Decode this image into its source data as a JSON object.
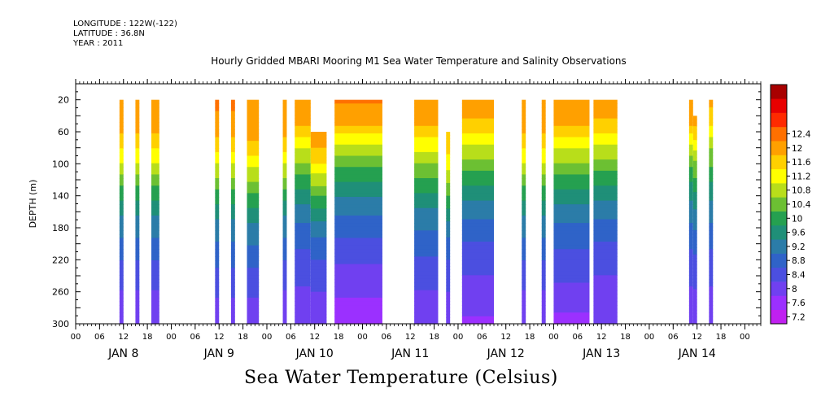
{
  "header": {
    "longitude": "LONGITUDE : 122W(-122)",
    "latitude": "LATITUDE : 36.8N",
    "year": "YEAR : 2011"
  },
  "chart_data": {
    "type": "heatmap",
    "title": "Hourly Gridded MBARI Mooring M1 Sea Water Temperature and Salinity Observations",
    "xlabel": "",
    "ylabel": "DEPTH (m)",
    "colorbar_title": "Sea Water Temperature (Celsius)",
    "x_hour_ticks": [
      "00",
      "06",
      "12",
      "18",
      "00",
      "06",
      "12",
      "18",
      "00",
      "06",
      "12",
      "18",
      "00",
      "06",
      "12",
      "18",
      "00",
      "06",
      "12",
      "18",
      "00",
      "06",
      "12",
      "18",
      "00",
      "06",
      "12",
      "18",
      "00"
    ],
    "x_day_labels": [
      "JAN  8",
      "JAN  9",
      "JAN 10",
      "JAN 11",
      "JAN 12",
      "JAN 13",
      "JAN 14"
    ],
    "xlim_hours_from_jan8": [
      0,
      172
    ],
    "y_ticks": [
      20,
      60,
      100,
      140,
      180,
      220,
      260,
      300
    ],
    "ylim": [
      300,
      0
    ],
    "y_reversed": true,
    "grid": false,
    "colorbar_levels": [
      7.2,
      7.6,
      8,
      8.4,
      8.8,
      9.2,
      9.6,
      10,
      10.4,
      10.8,
      11.2,
      11.6,
      12,
      12.4
    ],
    "colorbar_colors": [
      "#c020f0",
      "#9b30ff",
      "#7040f0",
      "#4b4fe0",
      "#2f63c8",
      "#2b7ca8",
      "#1f8f78",
      "#25a050",
      "#6cc033",
      "#b8de1a",
      "#ffff00",
      "#ffd000",
      "#ffa000",
      "#ff7000",
      "#ff2a00",
      "#e80000",
      "#a80000"
    ],
    "data_segments": [
      {
        "start_hour": 11,
        "end_hour": 12,
        "top_depth": 20,
        "profile": [
          12,
          11.8,
          11.2,
          10.4,
          9.6,
          9.0,
          8.6,
          8.2,
          7.9,
          7.8
        ]
      },
      {
        "start_hour": 15,
        "end_hour": 16,
        "top_depth": 20,
        "profile": [
          12,
          11.8,
          11.2,
          10.4,
          9.6,
          9.0,
          8.6,
          8.2,
          7.9,
          7.8
        ]
      },
      {
        "start_hour": 19,
        "end_hour": 21,
        "top_depth": 20,
        "profile": [
          12,
          11.8,
          11.2,
          10.4,
          9.6,
          9.0,
          8.6,
          8.2,
          7.9,
          7.7
        ]
      },
      {
        "start_hour": 35,
        "end_hour": 36,
        "top_depth": 20,
        "profile": [
          12.1,
          11.9,
          11.3,
          10.5,
          9.7,
          9.1,
          8.7,
          8.3,
          8.0,
          7.8
        ]
      },
      {
        "start_hour": 39,
        "end_hour": 40,
        "top_depth": 20,
        "profile": [
          12.1,
          11.9,
          11.3,
          10.5,
          9.7,
          9.1,
          8.7,
          8.3,
          8.0,
          7.7
        ]
      },
      {
        "start_hour": 43,
        "end_hour": 46,
        "top_depth": 20,
        "profile": [
          12,
          11.9,
          11.4,
          10.6,
          9.8,
          9.2,
          8.7,
          8.3,
          8.0,
          7.7
        ]
      },
      {
        "start_hour": 52,
        "end_hour": 53,
        "top_depth": 20,
        "profile": [
          12,
          11.9,
          11.3,
          10.5,
          9.6,
          9.0,
          8.6,
          8.2,
          7.9,
          7.7
        ]
      },
      {
        "start_hour": 55,
        "end_hour": 59,
        "top_depth": 20,
        "profile": [
          11.9,
          11.6,
          10.8,
          10.0,
          9.3,
          8.8,
          8.4,
          8.1,
          7.9,
          7.6
        ]
      },
      {
        "start_hour": 59,
        "end_hour": 63,
        "top_depth": 60,
        "profile": [
          11.9,
          11.5,
          10.8,
          10.0,
          9.3,
          8.8,
          8.4,
          8.1,
          7.9,
          7.6
        ]
      },
      {
        "start_hour": 65,
        "end_hour": 77,
        "top_depth": 20,
        "profile": [
          12.1,
          11.6,
          10.6,
          9.8,
          9.1,
          8.6,
          8.2,
          7.9,
          7.6,
          7.3
        ]
      },
      {
        "start_hour": 85,
        "end_hour": 91,
        "top_depth": 20,
        "profile": [
          11.9,
          11.6,
          10.9,
          10.1,
          9.4,
          8.9,
          8.5,
          8.2,
          7.9,
          7.7
        ]
      },
      {
        "start_hour": 93,
        "end_hour": 94,
        "top_depth": 60,
        "profile": [
          11.4,
          11.2,
          10.7,
          10.0,
          9.3,
          8.8,
          8.4,
          8.1,
          7.9,
          7.7
        ]
      },
      {
        "start_hour": 97,
        "end_hour": 105,
        "top_depth": 20,
        "profile": [
          11.9,
          11.5,
          10.7,
          9.9,
          9.2,
          8.7,
          8.3,
          8.0,
          7.8,
          7.5
        ]
      },
      {
        "start_hour": 112,
        "end_hour": 113,
        "top_depth": 20,
        "profile": [
          12,
          11.8,
          11.2,
          10.4,
          9.6,
          9.0,
          8.6,
          8.2,
          7.9,
          7.6
        ]
      },
      {
        "start_hour": 117,
        "end_hour": 118,
        "top_depth": 20,
        "profile": [
          12,
          11.8,
          11.2,
          10.4,
          9.6,
          9.0,
          8.6,
          8.2,
          7.9,
          7.6
        ]
      },
      {
        "start_hour": 120,
        "end_hour": 129,
        "top_depth": 20,
        "profile": [
          11.9,
          11.6,
          10.8,
          10.0,
          9.3,
          8.8,
          8.4,
          8.1,
          7.8,
          7.4
        ]
      },
      {
        "start_hour": 130,
        "end_hour": 136,
        "top_depth": 20,
        "profile": [
          11.9,
          11.5,
          10.7,
          9.9,
          9.2,
          8.7,
          8.3,
          8.0,
          7.8,
          7.6
        ]
      },
      {
        "start_hour": 154,
        "end_hour": 155,
        "top_depth": 20,
        "profile": [
          12,
          11.6,
          10.6,
          9.8,
          9.2,
          8.8,
          8.4,
          8.1,
          7.9,
          7.7
        ]
      },
      {
        "start_hour": 155,
        "end_hour": 156,
        "top_depth": 40,
        "profile": [
          11.9,
          11.2,
          10.4,
          9.8,
          9.2,
          8.8,
          8.4,
          8.1,
          7.9,
          7.7
        ]
      },
      {
        "start_hour": 159,
        "end_hour": 160,
        "top_depth": 20,
        "profile": [
          11.8,
          11.2,
          10.4,
          9.8,
          9.2,
          8.8,
          8.4,
          8.1,
          7.9,
          7.7
        ]
      }
    ]
  }
}
